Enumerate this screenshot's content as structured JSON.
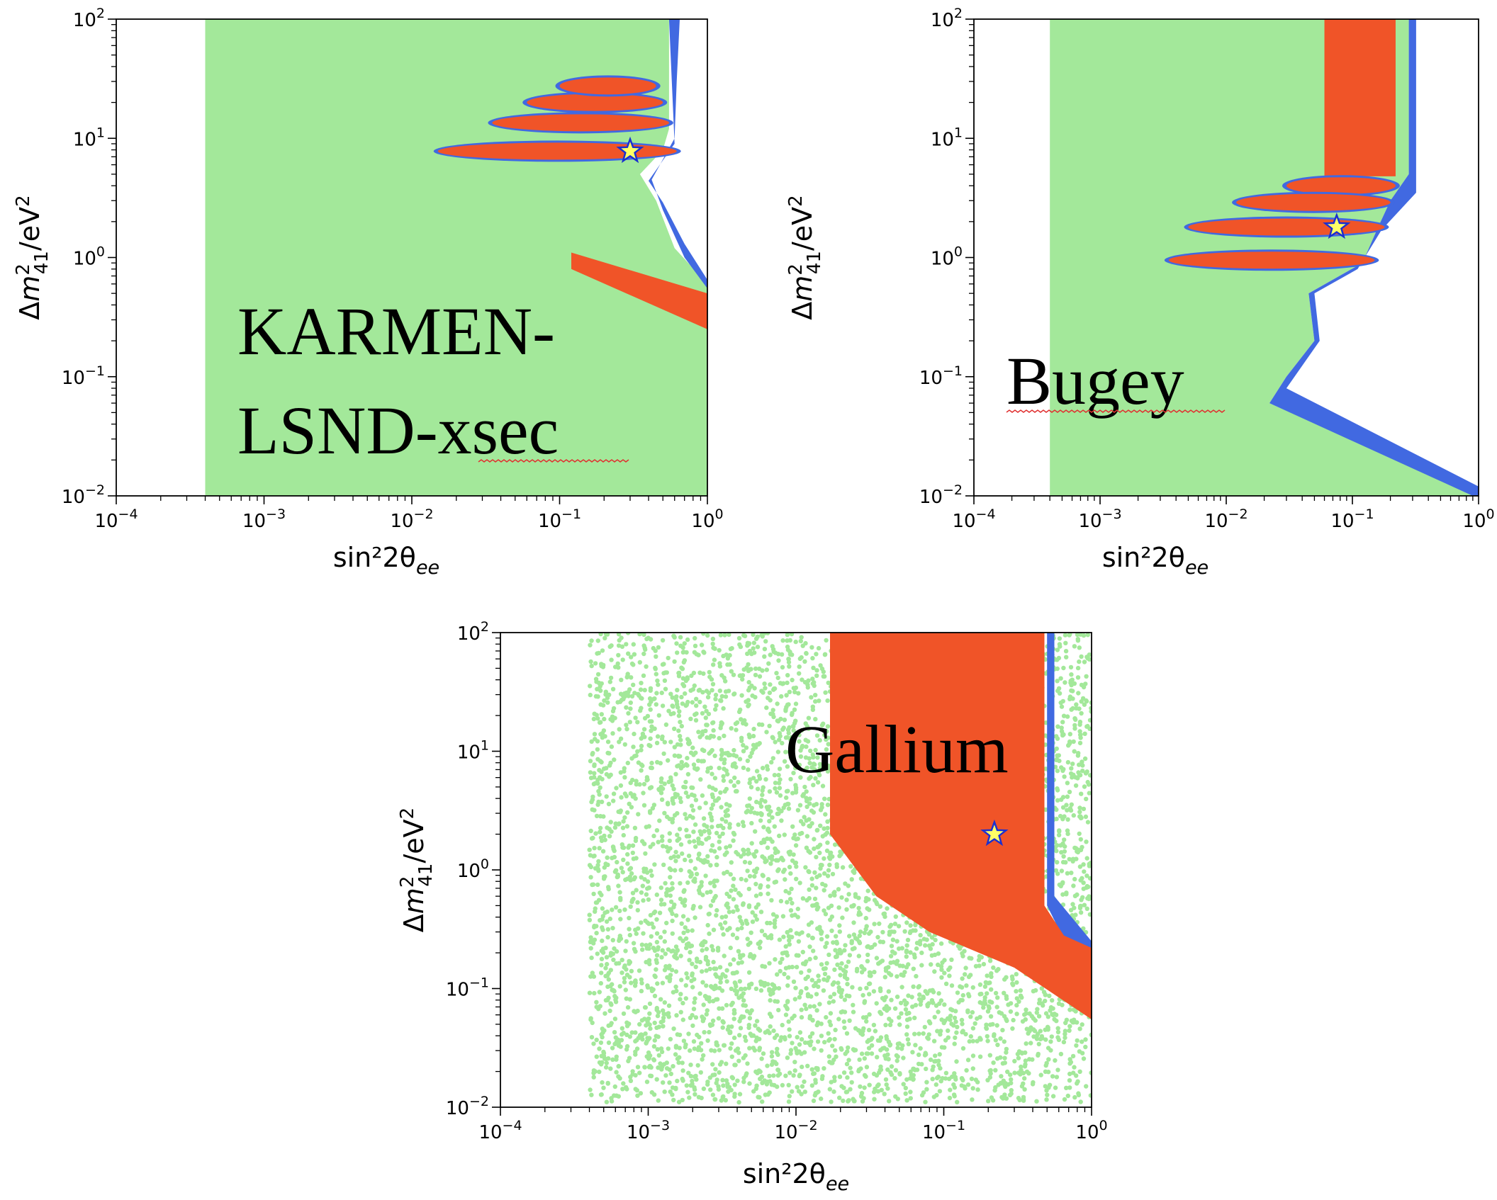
{
  "colors": {
    "green": "#a3e89a",
    "blue": "#4169e1",
    "red": "#f05428",
    "star_fill": "#ffff66",
    "star_edge": "#1a2fd0",
    "squiggle": "#e03030"
  },
  "chart_data": [
    {
      "type": "scatter",
      "panel": "KARMEN-LSND-xsec",
      "label_lines": [
        "KARMEN-",
        "LSND-xsec"
      ],
      "xlabel": "sin²2θ",
      "xlabel_sub": "ee",
      "ylabel": "Δm",
      "ylabel_sup": "2",
      "ylabel_sub": "41",
      "ylabel_unit": "/eV",
      "ylabel_unit_sup": "2",
      "xscale": "log",
      "yscale": "log",
      "xlim": [
        0.0001,
        1
      ],
      "ylim": [
        0.01,
        100
      ],
      "xticks": [
        {
          "b": "10",
          "e": "−4"
        },
        {
          "b": "10",
          "e": "−3"
        },
        {
          "b": "10",
          "e": "−2"
        },
        {
          "b": "10",
          "e": "−1"
        },
        {
          "b": "10",
          "e": "0"
        }
      ],
      "yticks": [
        {
          "b": "10",
          "e": "−2"
        },
        {
          "b": "10",
          "e": "−1"
        },
        {
          "b": "10",
          "e": "0"
        },
        {
          "b": "10",
          "e": "1"
        },
        {
          "b": "10",
          "e": "2"
        }
      ],
      "best_fit": {
        "x": 0.3,
        "y": 7.8
      },
      "regions": {
        "green_boundary": [
          [
            0.0004,
            0.01
          ],
          [
            0.0004,
            100
          ],
          [
            0.55,
            100
          ],
          [
            0.55,
            12
          ],
          [
            0.5,
            8
          ],
          [
            0.35,
            5
          ],
          [
            0.45,
            3
          ],
          [
            0.6,
            1.2
          ],
          [
            1,
            0.6
          ],
          [
            1,
            0.01
          ]
        ],
        "blue_boundary": [
          [
            0.55,
            100
          ],
          [
            0.65,
            100
          ],
          [
            0.62,
            30
          ],
          [
            0.6,
            10
          ],
          [
            0.42,
            4.5
          ],
          [
            0.5,
            2.5
          ],
          [
            0.7,
            1
          ],
          [
            1,
            0.55
          ],
          [
            1,
            0.65
          ],
          [
            0.7,
            1.3
          ],
          [
            0.5,
            2.9
          ],
          [
            0.4,
            4.4
          ],
          [
            0.6,
            9
          ]
        ],
        "red_islands": [
          {
            "x": [
              0.015,
              0.62
            ],
            "y": 7.8
          },
          {
            "x": [
              0.035,
              0.55
            ],
            "y": 13.5
          },
          {
            "x": [
              0.06,
              0.5
            ],
            "y": 20
          },
          {
            "x": [
              0.1,
              0.45
            ],
            "y": 27.5
          }
        ],
        "red_band": [
          [
            0.12,
            1.1
          ],
          [
            1,
            0.5
          ],
          [
            1,
            0.25
          ],
          [
            0.12,
            0.8
          ]
        ]
      }
    },
    {
      "type": "scatter",
      "panel": "Bugey",
      "label_lines": [
        "Bugey"
      ],
      "xlabel": "sin²2θ",
      "xlabel_sub": "ee",
      "ylabel": "Δm",
      "ylabel_sup": "2",
      "ylabel_sub": "41",
      "ylabel_unit": "/eV",
      "ylabel_unit_sup": "2",
      "xscale": "log",
      "yscale": "log",
      "xlim": [
        0.0001,
        1
      ],
      "ylim": [
        0.01,
        100
      ],
      "xticks": [
        {
          "b": "10",
          "e": "−4"
        },
        {
          "b": "10",
          "e": "−3"
        },
        {
          "b": "10",
          "e": "−2"
        },
        {
          "b": "10",
          "e": "−1"
        },
        {
          "b": "10",
          "e": "0"
        }
      ],
      "yticks": [
        {
          "b": "10",
          "e": "−2"
        },
        {
          "b": "10",
          "e": "−1"
        },
        {
          "b": "10",
          "e": "0"
        },
        {
          "b": "10",
          "e": "1"
        },
        {
          "b": "10",
          "e": "2"
        }
      ],
      "best_fit": {
        "x": 0.075,
        "y": 1.8
      },
      "regions": {
        "green_boundary": [
          [
            0.0004,
            0.01
          ],
          [
            0.0004,
            100
          ],
          [
            0.28,
            100
          ],
          [
            0.28,
            5
          ],
          [
            0.2,
            3
          ],
          [
            0.16,
            1.8
          ],
          [
            0.12,
            0.9
          ],
          [
            0.045,
            0.5
          ],
          [
            0.05,
            0.2
          ],
          [
            0.03,
            0.1
          ],
          [
            0.022,
            0.06
          ],
          [
            1,
            0.01
          ]
        ],
        "blue_boundary": [
          [
            0.28,
            100
          ],
          [
            0.32,
            100
          ],
          [
            0.32,
            3.5
          ],
          [
            0.17,
            1.7
          ],
          [
            0.11,
            0.8
          ],
          [
            0.05,
            0.5
          ],
          [
            0.055,
            0.2
          ],
          [
            0.03,
            0.08
          ],
          [
            1,
            0.012
          ],
          [
            1,
            0.01
          ],
          [
            0.9,
            0.01
          ],
          [
            0.022,
            0.06
          ],
          [
            0.03,
            0.1
          ],
          [
            0.05,
            0.2
          ],
          [
            0.045,
            0.5
          ],
          [
            0.12,
            0.9
          ],
          [
            0.16,
            1.8
          ],
          [
            0.2,
            3
          ],
          [
            0.28,
            5
          ]
        ],
        "red_column": {
          "x": [
            0.06,
            0.22
          ],
          "y": [
            4.8,
            100
          ]
        },
        "red_islands": [
          {
            "x": [
              0.03,
              0.22
            ],
            "y": 4.0
          },
          {
            "x": [
              0.012,
              0.2
            ],
            "y": 2.9
          },
          {
            "x": [
              0.005,
              0.18
            ],
            "y": 1.8
          },
          {
            "x": [
              0.0035,
              0.15
            ],
            "y": 0.95
          }
        ]
      }
    },
    {
      "type": "scatter",
      "panel": "Gallium",
      "label_lines": [
        "Gallium"
      ],
      "xlabel": "sin²2θ",
      "xlabel_sub": "ee",
      "ylabel": "Δm",
      "ylabel_sup": "2",
      "ylabel_sub": "41",
      "ylabel_unit": "/eV",
      "ylabel_unit_sup": "2",
      "xscale": "log",
      "yscale": "log",
      "xlim": [
        0.0001,
        1
      ],
      "ylim": [
        0.01,
        100
      ],
      "xticks": [
        {
          "b": "10",
          "e": "−4"
        },
        {
          "b": "10",
          "e": "−3"
        },
        {
          "b": "10",
          "e": "−2"
        },
        {
          "b": "10",
          "e": "−1"
        },
        {
          "b": "10",
          "e": "0"
        }
      ],
      "yticks": [
        {
          "b": "10",
          "e": "−2"
        },
        {
          "b": "10",
          "e": "−1"
        },
        {
          "b": "10",
          "e": "0"
        },
        {
          "b": "10",
          "e": "1"
        },
        {
          "b": "10",
          "e": "2"
        }
      ],
      "best_fit": {
        "x": 0.22,
        "y": 2.0
      },
      "regions": {
        "green_sparse": {
          "x": [
            0.0004,
            1
          ],
          "y": [
            0.011,
            100
          ]
        },
        "red_boundary": [
          [
            0.017,
            100
          ],
          [
            0.48,
            100
          ],
          [
            0.48,
            0.5
          ],
          [
            0.65,
            0.28
          ],
          [
            1,
            0.22
          ],
          [
            1,
            0.055
          ],
          [
            0.3,
            0.15
          ],
          [
            0.08,
            0.3
          ],
          [
            0.035,
            0.6
          ],
          [
            0.017,
            2
          ]
        ],
        "blue_boundary": [
          [
            0.5,
            100
          ],
          [
            0.56,
            100
          ],
          [
            0.56,
            0.6
          ],
          [
            1,
            0.25
          ],
          [
            1,
            0.22
          ],
          [
            0.65,
            0.26
          ],
          [
            0.5,
            0.5
          ]
        ]
      }
    }
  ]
}
